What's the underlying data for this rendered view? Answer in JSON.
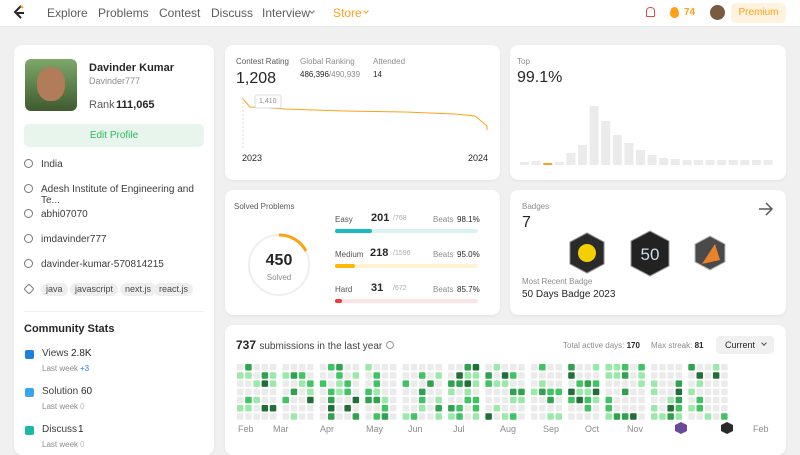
{
  "nav": {
    "items": [
      "Explore",
      "Problems",
      "Contest",
      "Discuss",
      "Interview",
      "Store"
    ],
    "streak": "74",
    "premium": "Premium"
  },
  "profile": {
    "name": "Davinder Kumar",
    "username": "Davinder777",
    "rank_label": "Rank",
    "rank": "111,065",
    "edit": "Edit Profile",
    "location": "India",
    "school": "Adesh Institute of Engineering and Te...",
    "github": "abhi07070",
    "twitter": "imdavinder777",
    "linkedin": "davinder-kumar-570814215",
    "skills": [
      "java",
      "javascript",
      "next.js",
      "react.js"
    ]
  },
  "community": {
    "title": "Community Stats",
    "items": [
      {
        "label": "Views",
        "value": "2.8K",
        "sub": "Last week",
        "delta": "+3"
      },
      {
        "label": "Solution",
        "value": "60",
        "sub": "Last week",
        "delta": "0"
      },
      {
        "label": "Discuss",
        "value": "1",
        "sub": "Last week",
        "delta": "0"
      }
    ]
  },
  "contest": {
    "rating_label": "Contest Rating",
    "rating": "1,208",
    "ranking_label": "Global Ranking",
    "ranking": "486,396",
    "ranking_total": "/490,939",
    "attended_label": "Attended",
    "attended": "14",
    "tooltip": "1,410",
    "years": [
      "2023",
      "2024"
    ],
    "top_label": "Top",
    "top": "99.1%"
  },
  "solved": {
    "title": "Solved Problems",
    "total": "450",
    "total_label": "Solved",
    "rows": [
      {
        "label": "Easy",
        "solved": "201",
        "total": "/768",
        "beats_label": "Beats",
        "beats": "98.1%"
      },
      {
        "label": "Medium",
        "solved": "218",
        "total": "/1596",
        "beats_label": "Beats",
        "beats": "95.0%"
      },
      {
        "label": "Hard",
        "solved": "31",
        "total": "/672",
        "beats_label": "Beats",
        "beats": "85.7%"
      }
    ]
  },
  "badges": {
    "label": "Badges",
    "count": "7",
    "recent_label": "Most Recent Badge",
    "recent": "50 Days Badge 2023"
  },
  "submissions": {
    "count": "737",
    "text": "submissions in the last year",
    "active_label": "Total active days:",
    "active": "170",
    "streak_label": "Max streak:",
    "streak": "81",
    "dropdown": "Current",
    "months": [
      "Feb",
      "Mar",
      "Apr",
      "May",
      "Jun",
      "Jul",
      "Aug",
      "Sep",
      "Oct",
      "Nov",
      "Feb"
    ]
  }
}
